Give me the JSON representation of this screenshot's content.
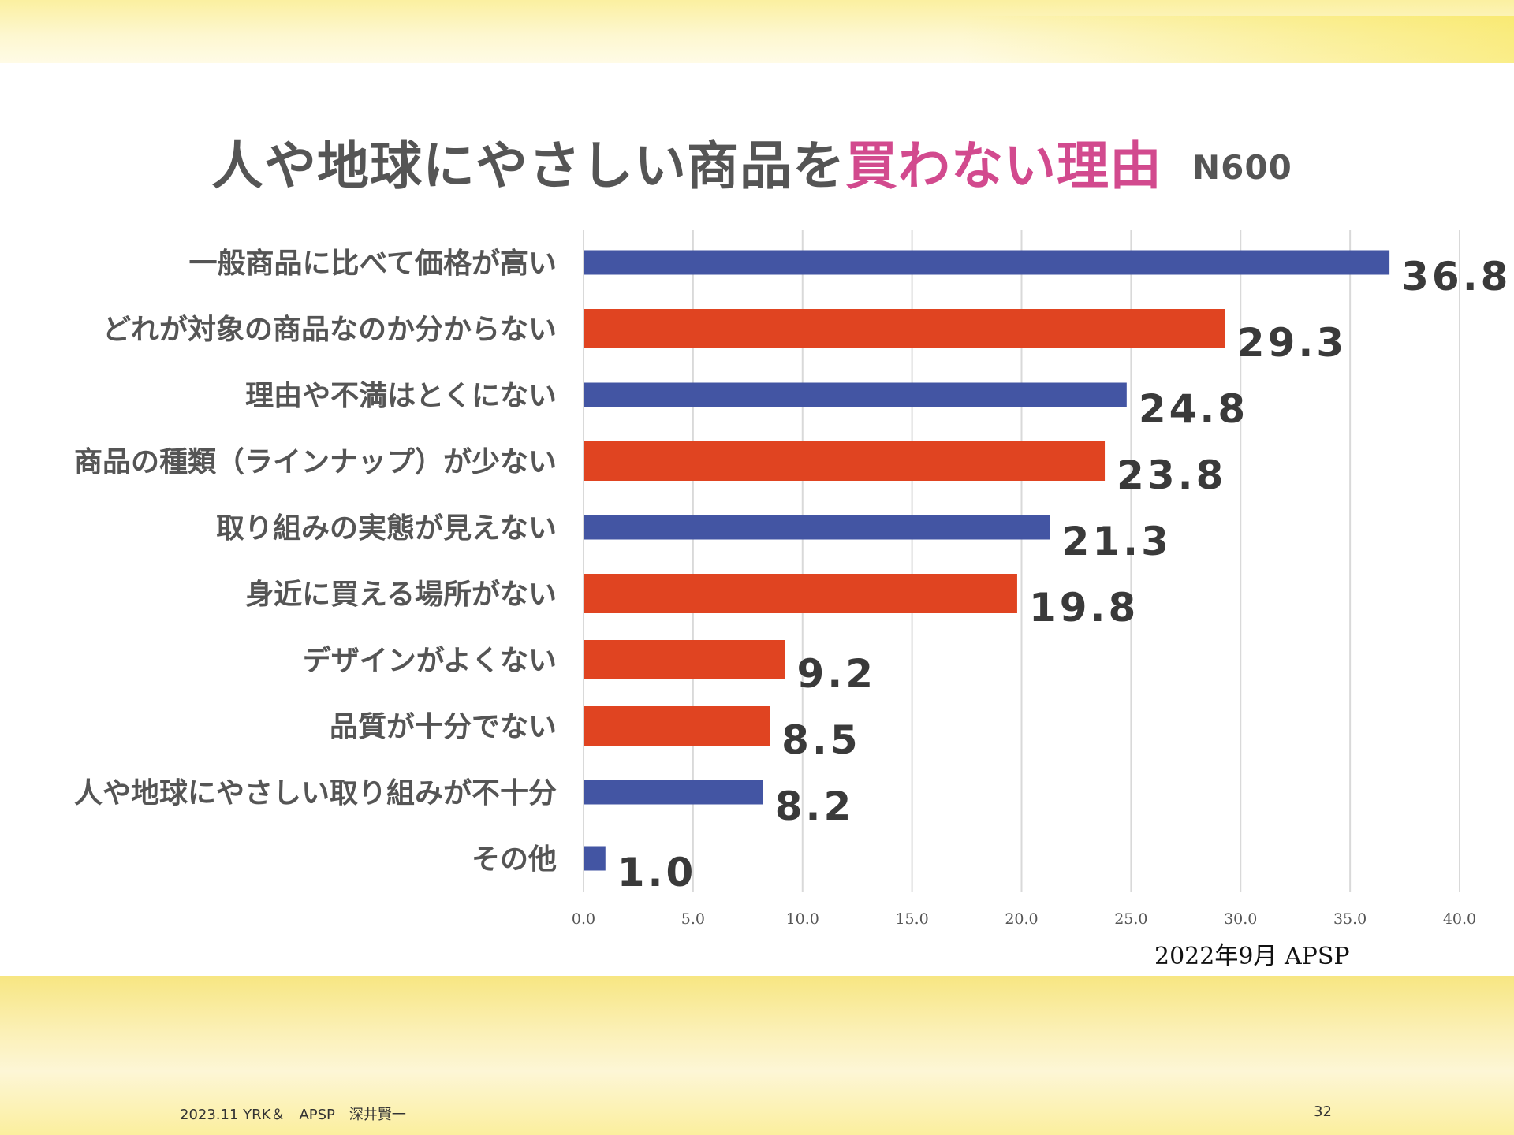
{
  "title": {
    "prefix": "人や地球にやさしい商品を",
    "highlight": "買わない理由",
    "sample": "N600"
  },
  "source": "2022年9月 APSP",
  "footer": {
    "left": "2023.11 YRK＆　APSP　深井賢一",
    "page": "32"
  },
  "colors": {
    "blue": "#4355a3",
    "red": "#e04421",
    "title_highlight": "#d24a8e",
    "grid": "#d9d9d9"
  },
  "chart_data": {
    "type": "bar",
    "orientation": "horizontal",
    "categories": [
      "一般商品に比べて価格が高い",
      "どれが対象の商品なのか分からない",
      "理由や不満はとくにない",
      "商品の種類（ラインナップ）が少ない",
      "取り組みの実態が見えない",
      "身近に買える場所がない",
      "デザインがよくない",
      "品質が十分でない",
      "人や地球にやさしい取り組みが不十分",
      "その他"
    ],
    "values": [
      36.8,
      29.3,
      24.8,
      23.8,
      21.3,
      19.8,
      9.2,
      8.5,
      8.2,
      1.0
    ],
    "value_labels": [
      "36.8",
      "29.3",
      "24.8",
      "23.8",
      "21.3",
      "19.8",
      "9.2",
      "8.5",
      "8.2",
      "1.0"
    ],
    "bar_colors": [
      "blue",
      "red",
      "blue",
      "red",
      "blue",
      "red",
      "red",
      "red",
      "blue",
      "blue"
    ],
    "xlim": [
      0,
      40
    ],
    "xticks": [
      "0.0",
      "5.0",
      "10.0",
      "15.0",
      "20.0",
      "25.0",
      "30.0",
      "35.0",
      "40.0"
    ],
    "grid": true,
    "legend": "none"
  }
}
